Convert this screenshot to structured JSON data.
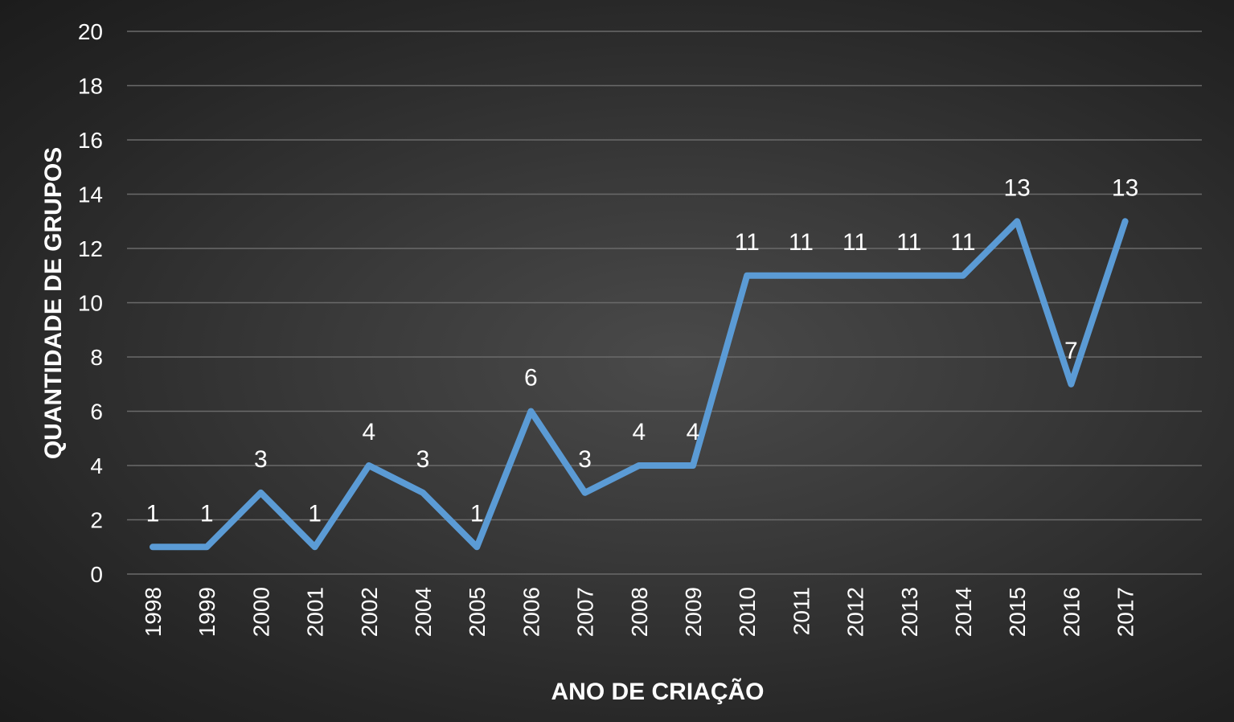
{
  "chart_data": {
    "type": "line",
    "title": "",
    "xlabel": "ANO DE CRIAÇÃO",
    "ylabel": "QUANTIDADE DE GRUPOS",
    "ylim": [
      0,
      20
    ],
    "yticks": [
      "0",
      "2",
      "4",
      "6",
      "8",
      "10",
      "12",
      "14",
      "16",
      "18",
      "20"
    ],
    "categories": [
      "1998",
      "1999",
      "2000",
      "2001",
      "2002",
      "2004",
      "2005",
      "2006",
      "2007",
      "2008",
      "2009",
      "2010",
      "2011",
      "2012",
      "2013",
      "2014",
      "2015",
      "2016",
      "2017"
    ],
    "series": [
      {
        "values": [
          1,
          1,
          3,
          1,
          4,
          3,
          1,
          6,
          3,
          4,
          4,
          11,
          11,
          11,
          11,
          11,
          13,
          7,
          13
        ],
        "color": "#5b9bd5"
      }
    ],
    "data_labels": [
      "1",
      "1",
      "3",
      "1",
      "4",
      "3",
      "1",
      "6",
      "3",
      "4",
      "4",
      "11",
      "11",
      "11",
      "11",
      "11",
      "13",
      "7",
      "13"
    ],
    "grid": true,
    "legend": "none",
    "background": "#333333",
    "text_color": "#ffffff",
    "grid_color": "#6a6a6a"
  }
}
